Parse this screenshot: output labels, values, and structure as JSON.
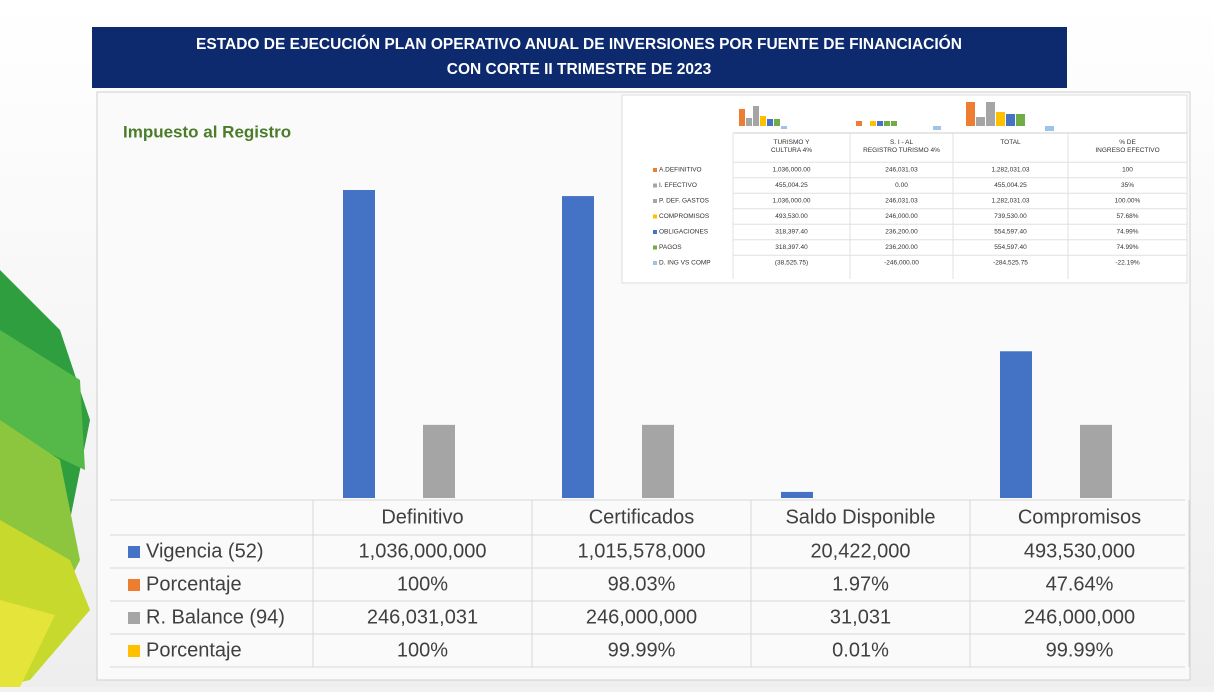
{
  "title_line1": "ESTADO DE EJECUCIÓN PLAN OPERATIVO ANUAL DE INVERSIONES POR FUENTE DE FINANCIACIÓN",
  "title_line2": "CON CORTE II TRIMESTRE DE 2023",
  "chart_data": {
    "type": "bar",
    "title": "Impuesto al Registro",
    "categories": [
      "Definitivo",
      "Certificados",
      "Saldo Disponible",
      "Compromisos"
    ],
    "series": [
      {
        "name": "Vigencia (52)",
        "color": "#4472c4",
        "values": [
          1036000000,
          1015578000,
          20422000,
          493530000
        ],
        "value_labels": [
          "1,036,000,000",
          "1,015,578,000",
          "20,422,000",
          "493,530,000"
        ]
      },
      {
        "name": "Porcentaje",
        "color": "#ed7d31",
        "values": [
          100,
          98.03,
          1.97,
          47.64
        ],
        "value_labels": [
          "100%",
          "98.03%",
          "1.97%",
          "47.64%"
        ]
      },
      {
        "name": "R. Balance (94)",
        "color": "#a5a5a5",
        "values": [
          246031031,
          246000000,
          31031,
          246000000
        ],
        "value_labels": [
          "246,031,031",
          "246,000,000",
          "31,031",
          "246,000,000"
        ]
      },
      {
        "name": "Porcentaje",
        "color": "#ffc000",
        "values": [
          100,
          99.99,
          0.01,
          99.99
        ],
        "value_labels": [
          "100%",
          "99.99%",
          "0.01%",
          "99.99%"
        ]
      }
    ]
  },
  "inset_table": {
    "header": [
      "TURISMO Y CULTURA 4%",
      "S. I - AL REGISTRO TURISMO 4%",
      "TOTAL",
      "% DE INGRESO EFECTIVO"
    ],
    "rows": [
      [
        "A.DEFINITIVO",
        "1,036,000.00",
        "246,031.03",
        "1,282,031.03",
        "100"
      ],
      [
        "I. EFECTIVO",
        "455,004.25",
        "0.00",
        "455,004.25",
        "35%"
      ],
      [
        "P. DEF. GASTOS",
        "1,036,000.00",
        "246,031.03",
        "1,282,031.03",
        "100.00%"
      ],
      [
        "COMPROMISOS",
        "493,530.00",
        "246,000.00",
        "739,530.00",
        "57.68%"
      ],
      [
        "OBLIGACIONES",
        "318,397.40",
        "236,200.00",
        "554,597.40",
        "74.99%"
      ],
      [
        "PAGOS",
        "318,397.40",
        "236,200.00",
        "554,597.40",
        "74.99%"
      ],
      [
        "D. ING VS COMP",
        "(38,525.75)",
        "-246,000.00",
        "-284,525.75",
        "-22.19%"
      ]
    ]
  }
}
